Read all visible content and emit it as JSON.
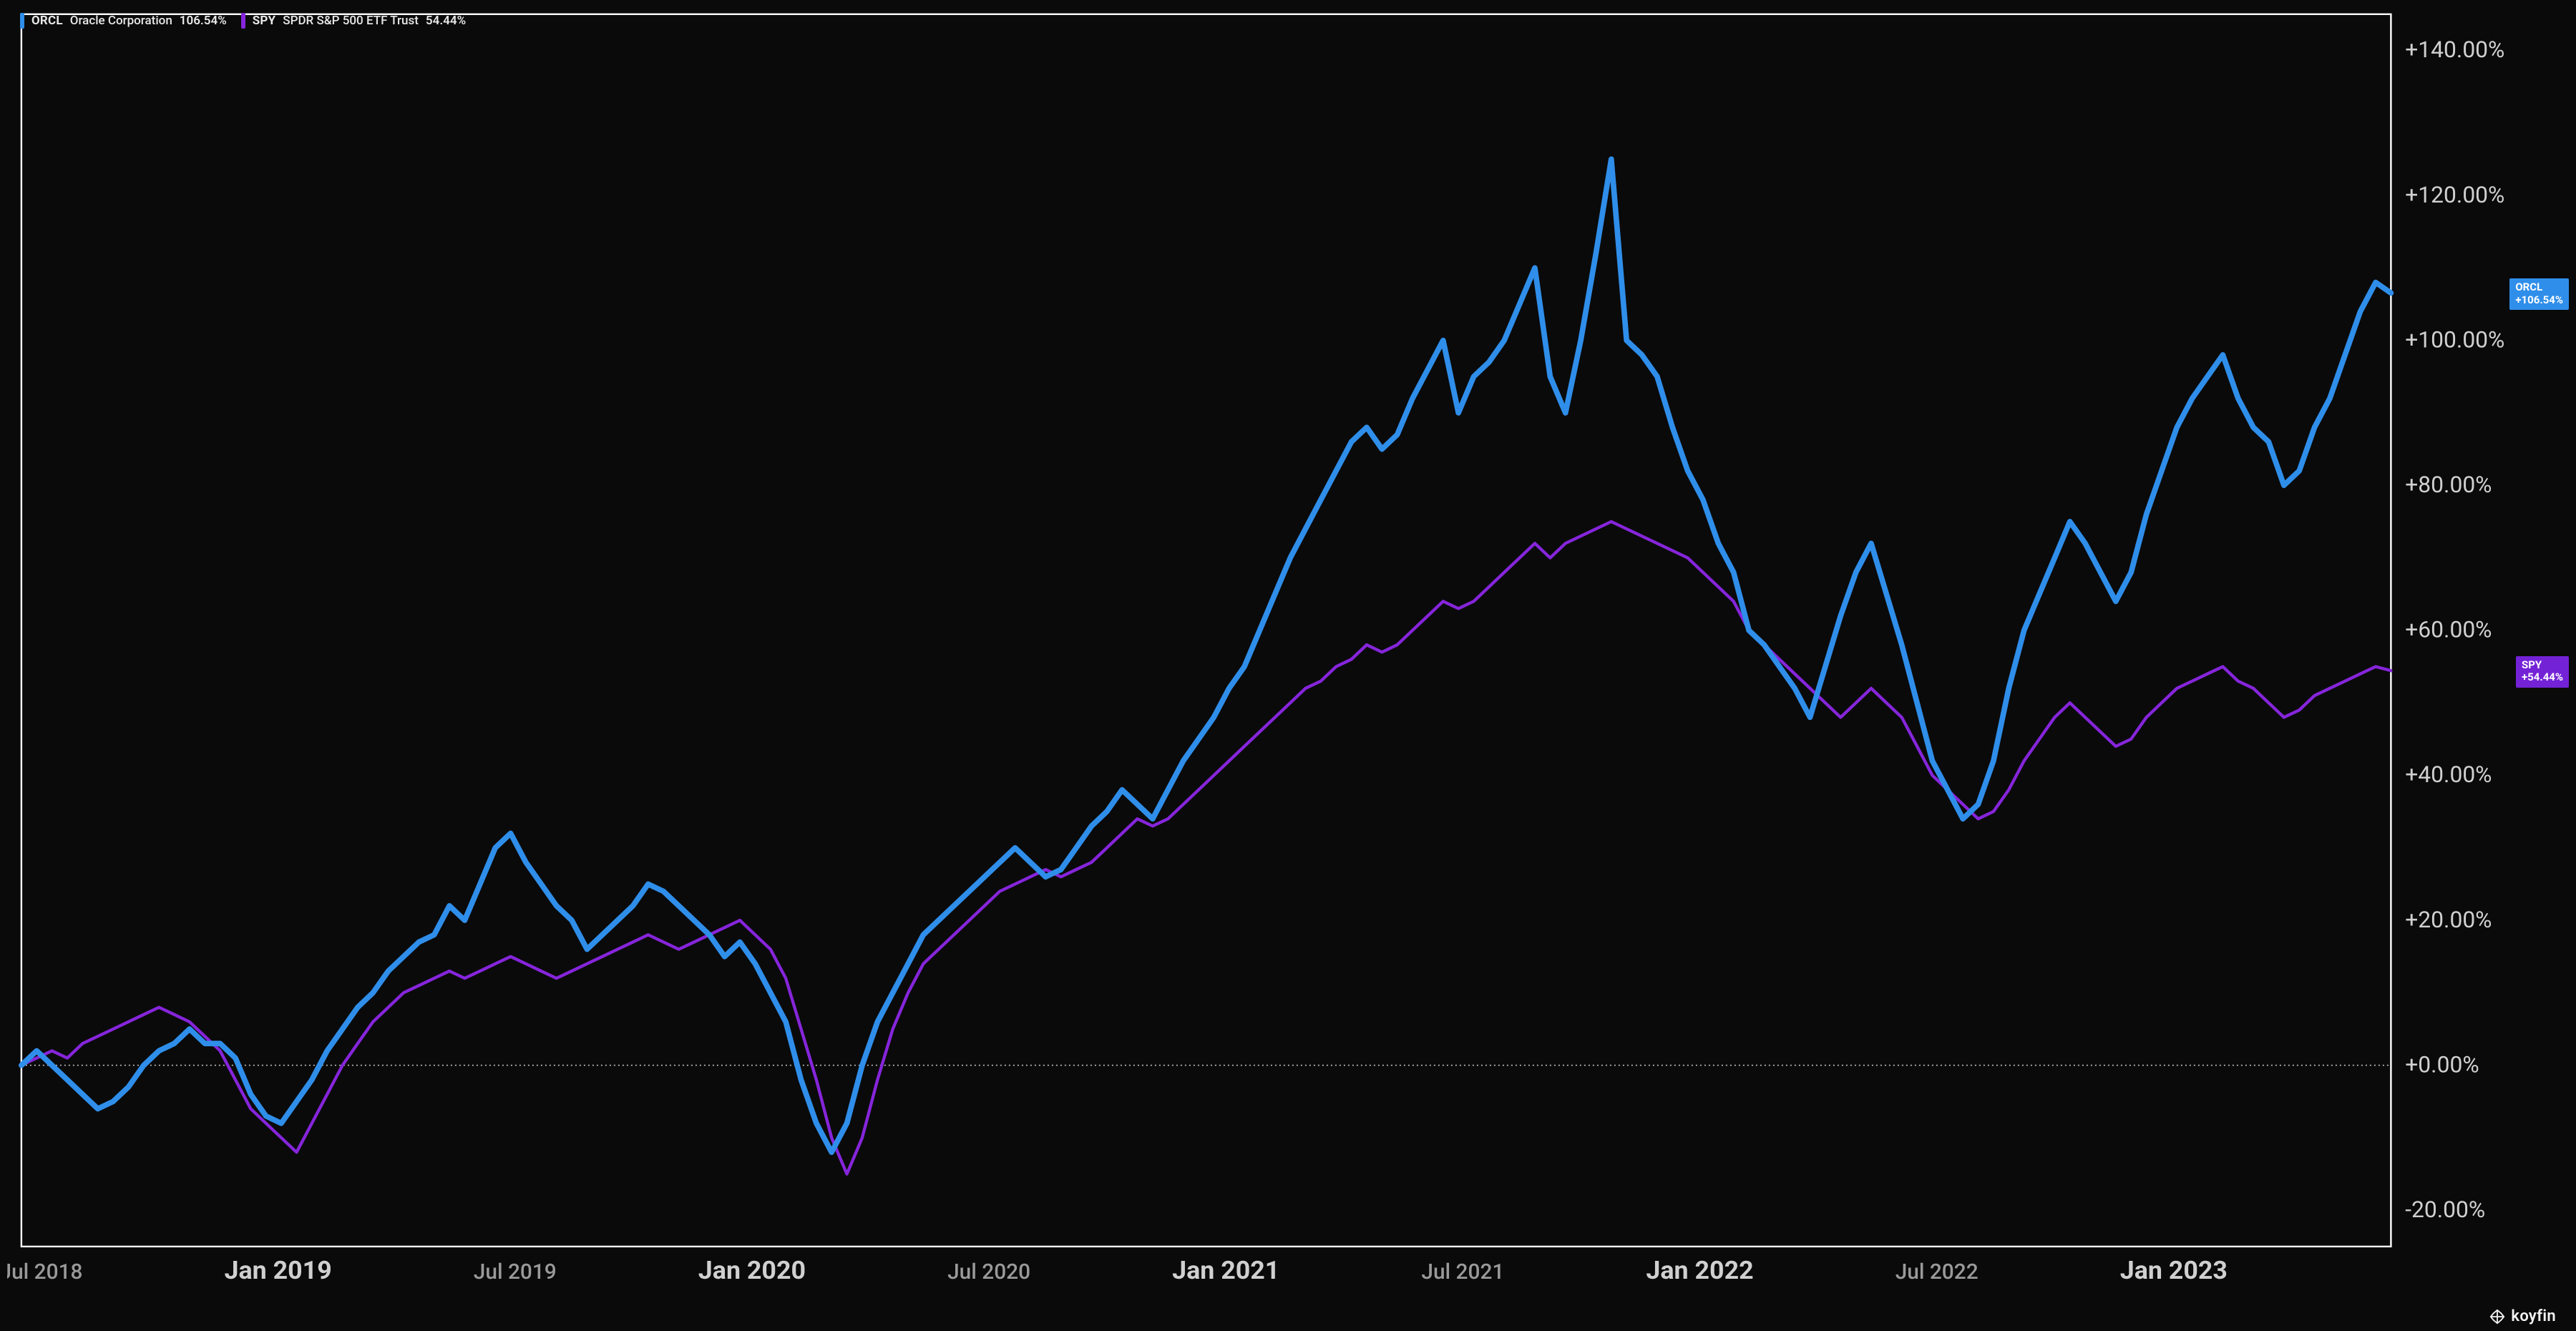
{
  "chart": {
    "type": "line",
    "background_color": "#0a0a0a",
    "plot_border_color": "#ffffff",
    "plot_border_width": 1.2,
    "grid_color": "#555555",
    "zero_line_color": "#cccccc",
    "zero_line_dash": "2,4",
    "axis_label_color": "#d0d0d0",
    "axis_label_sub_color": "#9a9a9a",
    "axis_font_size_px": 15,
    "axis_font_size_major_px": 16,
    "y_axis": {
      "min": -25,
      "max": 145,
      "ticks": [
        {
          "v": -20,
          "label": "-20.00%"
        },
        {
          "v": 0,
          "label": "+0.00%"
        },
        {
          "v": 20,
          "label": "+20.00%"
        },
        {
          "v": 40,
          "label": "+40.00%"
        },
        {
          "v": 60,
          "label": "+60.00%"
        },
        {
          "v": 80,
          "label": "+80.00%"
        },
        {
          "v": 100,
          "label": "+100.00%"
        },
        {
          "v": 120,
          "label": "+120.00%"
        },
        {
          "v": 140,
          "label": "+140.00%"
        }
      ]
    },
    "x_axis": {
      "min": 0,
      "max": 120,
      "ticks": [
        {
          "v": 1,
          "label": "Jul 2018",
          "major": false
        },
        {
          "v": 13,
          "label": "Jan 2019",
          "major": true
        },
        {
          "v": 25,
          "label": "Jul 2019",
          "major": false
        },
        {
          "v": 37,
          "label": "Jan 2020",
          "major": true
        },
        {
          "v": 49,
          "label": "Jul 2020",
          "major": false
        },
        {
          "v": 61,
          "label": "Jan 2021",
          "major": true
        },
        {
          "v": 73,
          "label": "Jul 2021",
          "major": false
        },
        {
          "v": 85,
          "label": "Jan 2022",
          "major": true
        },
        {
          "v": 97,
          "label": "Jul 2022",
          "major": false
        },
        {
          "v": 109,
          "label": "Jan 2023",
          "major": true
        }
      ]
    },
    "series": [
      {
        "id": "orcl",
        "ticker": "ORCL",
        "name": "Oracle Corporation",
        "pct_label": "106.54%",
        "end_value": 106.54,
        "end_badge_text": "ORCL\n+106.54%",
        "color": "#2f8eea",
        "badge_color": "#2f8eea",
        "line_width": 3.2,
        "data": [
          0,
          2,
          0,
          -2,
          -4,
          -6,
          -5,
          -3,
          0,
          2,
          3,
          5,
          3,
          3,
          1,
          -4,
          -7,
          -8,
          -5,
          -2,
          2,
          5,
          8,
          10,
          13,
          15,
          17,
          18,
          22,
          20,
          25,
          30,
          32,
          28,
          25,
          22,
          20,
          16,
          18,
          20,
          22,
          25,
          24,
          22,
          20,
          18,
          15,
          17,
          14,
          10,
          6,
          -2,
          -8,
          -12,
          -8,
          0,
          6,
          10,
          14,
          18,
          20,
          22,
          24,
          26,
          28,
          30,
          28,
          26,
          27,
          30,
          33,
          35,
          38,
          36,
          34,
          38,
          42,
          45,
          48,
          52,
          55,
          60,
          65,
          70,
          74,
          78,
          82,
          86,
          88,
          85,
          87,
          92,
          96,
          100,
          90,
          95,
          97,
          100,
          105,
          110,
          95,
          90,
          100,
          112,
          125,
          100,
          98,
          95,
          88,
          82,
          78,
          72,
          68,
          60,
          58,
          55,
          52,
          48,
          55,
          62,
          68,
          72,
          65,
          58,
          50,
          42,
          38,
          34,
          36,
          42,
          52,
          60,
          65,
          70,
          75,
          72,
          68,
          64,
          68,
          76,
          82,
          88,
          92,
          95,
          98,
          92,
          88,
          86,
          80,
          82,
          88,
          92,
          98,
          104,
          108,
          106.54
        ]
      },
      {
        "id": "spy",
        "ticker": "SPY",
        "name": "SPDR S&P 500 ETF Trust",
        "pct_label": "54.44%",
        "end_value": 54.44,
        "end_badge_text": "SPY\n+54.44%",
        "color": "#8625db",
        "badge_color": "#7422d6",
        "line_width": 1.8,
        "data": [
          0,
          1,
          2,
          1,
          3,
          4,
          5,
          6,
          7,
          8,
          7,
          6,
          4,
          2,
          -2,
          -6,
          -8,
          -10,
          -12,
          -8,
          -4,
          0,
          3,
          6,
          8,
          10,
          11,
          12,
          13,
          12,
          13,
          14,
          15,
          14,
          13,
          12,
          13,
          14,
          15,
          16,
          17,
          18,
          17,
          16,
          17,
          18,
          19,
          20,
          18,
          16,
          12,
          5,
          -2,
          -10,
          -15,
          -10,
          -2,
          5,
          10,
          14,
          16,
          18,
          20,
          22,
          24,
          25,
          26,
          27,
          26,
          27,
          28,
          30,
          32,
          34,
          33,
          34,
          36,
          38,
          40,
          42,
          44,
          46,
          48,
          50,
          52,
          53,
          55,
          56,
          58,
          57,
          58,
          60,
          62,
          64,
          63,
          64,
          66,
          68,
          70,
          72,
          70,
          72,
          73,
          74,
          75,
          74,
          73,
          72,
          71,
          70,
          68,
          66,
          64,
          60,
          58,
          56,
          54,
          52,
          50,
          48,
          50,
          52,
          50,
          48,
          44,
          40,
          38,
          36,
          34,
          35,
          38,
          42,
          45,
          48,
          50,
          48,
          46,
          44,
          45,
          48,
          50,
          52,
          53,
          54,
          55,
          53,
          52,
          50,
          48,
          49,
          51,
          52,
          53,
          54,
          55,
          54.44
        ]
      }
    ]
  },
  "brand": {
    "text": "koyfin",
    "color": "#ffffff"
  }
}
